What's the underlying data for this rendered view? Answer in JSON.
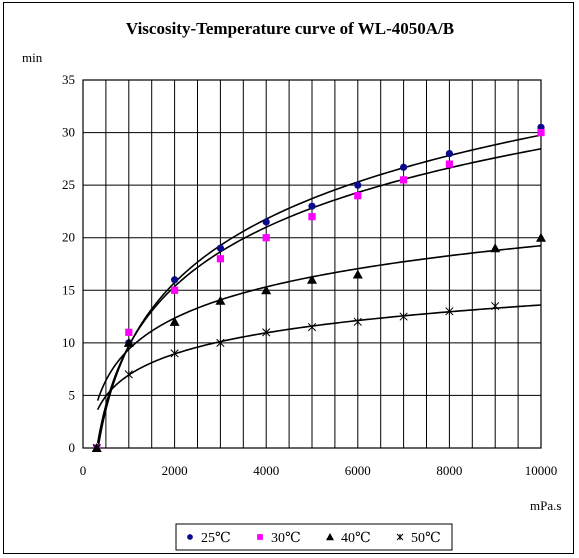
{
  "chart_data": {
    "type": "scatter",
    "title": "Viscosity-Temperature curve of WL-4050A/B",
    "ylabel": "min",
    "xlabel": "mPa.s",
    "xlim": [
      0,
      10000
    ],
    "ylim": [
      0,
      35
    ],
    "x_ticks": [
      "0",
      "2000",
      "4000",
      "6000",
      "8000",
      "10000"
    ],
    "y_ticks": [
      "0",
      "5",
      "10",
      "15",
      "20",
      "25",
      "30",
      "35"
    ],
    "grid": true,
    "legend_position": "bottom",
    "series": [
      {
        "name": "25℃",
        "marker": "circle",
        "color": "#0a0a8c",
        "points": [
          [
            300,
            0
          ],
          [
            1000,
            10
          ],
          [
            2000,
            16
          ],
          [
            3000,
            19
          ],
          [
            4000,
            21.5
          ],
          [
            5000,
            23
          ],
          [
            6000,
            25
          ],
          [
            7000,
            26.7
          ],
          [
            8000,
            28
          ],
          [
            10000,
            30.5
          ]
        ]
      },
      {
        "name": "30℃",
        "marker": "square",
        "color": "#ff00ff",
        "points": [
          [
            300,
            0
          ],
          [
            1000,
            11
          ],
          [
            2000,
            15
          ],
          [
            3000,
            18
          ],
          [
            4000,
            20
          ],
          [
            5000,
            22
          ],
          [
            6000,
            24
          ],
          [
            7000,
            25.5
          ],
          [
            8000,
            27
          ],
          [
            10000,
            30
          ]
        ]
      },
      {
        "name": "40℃",
        "marker": "triangle",
        "color": "#000000",
        "points": [
          [
            300,
            0
          ],
          [
            1000,
            10
          ],
          [
            2000,
            12
          ],
          [
            3000,
            14
          ],
          [
            4000,
            15
          ],
          [
            5000,
            16
          ],
          [
            6000,
            16.5
          ],
          [
            9000,
            19
          ],
          [
            10000,
            20
          ]
        ]
      },
      {
        "name": "50℃",
        "marker": "star",
        "color": "#000000",
        "points": [
          [
            300,
            0
          ],
          [
            1000,
            7
          ],
          [
            2000,
            9
          ],
          [
            3000,
            10
          ],
          [
            4000,
            11
          ],
          [
            5000,
            11.5
          ],
          [
            6000,
            12
          ],
          [
            7000,
            12.5
          ],
          [
            8000,
            13
          ],
          [
            9000,
            13.5
          ]
        ]
      }
    ]
  }
}
